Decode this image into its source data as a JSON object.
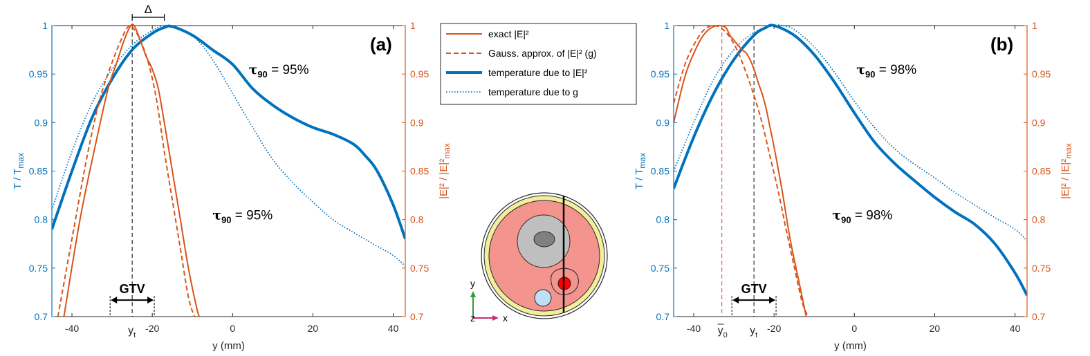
{
  "colors": {
    "temp": "#0072BD",
    "efield": "#D95319",
    "panel_label": "#1F2D8C",
    "axis_text": "#262626",
    "body": "#F4948F",
    "skin": "#F3EE9B",
    "gray_outer": "#BFBFBF",
    "gray_inner": "#808080",
    "tumor": "#FF0000",
    "bladder": "#BDE0F7",
    "y_axis_arrow": "#2E9C3C",
    "x_axis_arrow": "#C62D6E"
  },
  "legend": [
    {
      "text": "exact |E|²",
      "style": "efield-solid"
    },
    {
      "text": "Gauss. approx. of |E|² (g)",
      "style": "efield-dashed"
    },
    {
      "text": "temperature due to |E|²",
      "style": "temp-solid"
    },
    {
      "text": "temperature due to g",
      "style": "temp-dotted"
    }
  ],
  "inset": {
    "y_axis": "y",
    "z_axis": "z",
    "x_axis": "x"
  },
  "chart_data": [
    {
      "type": "line",
      "panel_label": "(a)",
      "xlabel": "y (mm)",
      "ylabel_left": "T / T",
      "ylabel_left_sub": "max",
      "ylabel_right": "|E|² / |E|²",
      "ylabel_right_sub": "max",
      "xlim": [
        -45,
        43
      ],
      "ylim_left": [
        0.7,
        1.0
      ],
      "ylim_right": [
        0.7,
        1.0
      ],
      "x_tick_labels": [
        {
          "x": -40,
          "text": "-40"
        },
        {
          "x": -20,
          "text": "-20"
        },
        {
          "x": 0,
          "text": "0"
        },
        {
          "x": 20,
          "text": "20"
        },
        {
          "x": 40,
          "text": "40"
        }
      ],
      "extra_x_label": {
        "x": -25,
        "text": "y",
        "sub": "t"
      },
      "y_ticks": [
        0.7,
        0.75,
        0.8,
        0.85,
        0.9,
        0.95,
        1
      ],
      "y_tick_labels": [
        "0.7",
        "0.75",
        "0.8",
        "0.85",
        "0.9",
        "0.95",
        "1"
      ],
      "vlines": [
        {
          "x": -25,
          "color": "black"
        }
      ],
      "gtv": {
        "x1": -30.5,
        "x2": -19.5,
        "y": 0.717,
        "label": "GTV"
      },
      "delta": {
        "x1": -25,
        "x2": -17,
        "label": "Δ"
      },
      "tau_annotations": [
        {
          "text": "τ",
          "sub": "90",
          "value": " = 95%",
          "x": 4,
          "y": 0.95
        },
        {
          "text": "τ",
          "sub": "90",
          "value": " = 95%",
          "x": -5,
          "y": 0.8
        }
      ],
      "series": [
        {
          "name": "temperature due to |E|²",
          "axis": "left",
          "style": "temp-solid",
          "x": [
            -45,
            -40,
            -35,
            -30,
            -25,
            -20,
            -17,
            -15,
            -10,
            -5,
            0,
            5,
            10,
            15,
            20,
            25,
            30,
            33,
            36,
            40,
            43
          ],
          "y": [
            0.79,
            0.85,
            0.905,
            0.945,
            0.975,
            0.992,
            0.998,
            0.999,
            0.99,
            0.975,
            0.96,
            0.935,
            0.918,
            0.905,
            0.895,
            0.888,
            0.878,
            0.866,
            0.85,
            0.815,
            0.78
          ]
        },
        {
          "name": "temperature due to g",
          "axis": "left",
          "style": "temp-dotted",
          "x": [
            -45,
            -40,
            -35,
            -30,
            -25,
            -20,
            -17,
            -15,
            -10,
            -5,
            0,
            5,
            10,
            15,
            20,
            25,
            30,
            35,
            40,
            43
          ],
          "y": [
            0.81,
            0.87,
            0.92,
            0.955,
            0.98,
            0.995,
            1.0,
            0.999,
            0.99,
            0.965,
            0.93,
            0.895,
            0.862,
            0.838,
            0.818,
            0.8,
            0.787,
            0.775,
            0.763,
            0.752
          ]
        },
        {
          "name": "exact |E|²",
          "axis": "right",
          "style": "efield-solid",
          "x": [
            -42,
            -38,
            -34,
            -31,
            -29,
            -27,
            -25.5,
            -24.5,
            -23,
            -21.5,
            -20,
            -18.5,
            -17,
            -15,
            -13,
            -11,
            -9,
            -8.3
          ],
          "y": [
            0.7,
            0.8,
            0.88,
            0.935,
            0.96,
            0.985,
            0.999,
            1.0,
            0.985,
            0.968,
            0.955,
            0.935,
            0.9,
            0.85,
            0.8,
            0.75,
            0.71,
            0.7
          ]
        },
        {
          "name": "Gauss. approx. of |E|² (g)",
          "axis": "right",
          "style": "efield-dashed",
          "x": [
            -43.5,
            -40,
            -36,
            -33,
            -30,
            -28,
            -26.5,
            -25.5,
            -24.5,
            -23,
            -21,
            -19,
            -17,
            -15,
            -13,
            -11,
            -9.5
          ],
          "y": [
            0.7,
            0.78,
            0.87,
            0.925,
            0.962,
            0.983,
            0.996,
            1.0,
            0.996,
            0.985,
            0.962,
            0.925,
            0.87,
            0.82,
            0.77,
            0.72,
            0.7
          ]
        }
      ]
    },
    {
      "type": "line",
      "panel_label": "(b)",
      "xlabel": "y (mm)",
      "ylabel_left": "T / T",
      "ylabel_left_sub": "max",
      "ylabel_right": "|E|² / |E|²",
      "ylabel_right_sub": "max",
      "xlim": [
        -45,
        43
      ],
      "ylim_left": [
        0.7,
        1.0
      ],
      "ylim_right": [
        0.7,
        1.0
      ],
      "x_tick_labels": [
        {
          "x": -40,
          "text": "-40"
        },
        {
          "x": -20,
          "text": "-20"
        },
        {
          "x": 0,
          "text": "0"
        },
        {
          "x": 20,
          "text": "20"
        },
        {
          "x": 40,
          "text": "40"
        }
      ],
      "extra_x_labels": [
        {
          "x": -33,
          "text": "y",
          "sub": "0",
          "bar": true
        },
        {
          "x": -25,
          "text": "y",
          "sub": "t",
          "bar": false
        }
      ],
      "y_ticks": [
        0.7,
        0.75,
        0.8,
        0.85,
        0.9,
        0.95,
        1
      ],
      "y_tick_labels": [
        "0.7",
        "0.75",
        "0.8",
        "0.85",
        "0.9",
        "0.95",
        "1"
      ],
      "vlines": [
        {
          "x": -33,
          "color": "efield"
        },
        {
          "x": -25,
          "color": "black"
        }
      ],
      "gtv": {
        "x1": -30.5,
        "x2": -19.5,
        "y": 0.717,
        "label": "GTV"
      },
      "tau_annotations": [
        {
          "text": "τ",
          "sub": "90",
          "value": " = 98%",
          "x": 0.5,
          "y": 0.95
        },
        {
          "text": "τ",
          "sub": "90",
          "value": " = 98%",
          "x": -5.5,
          "y": 0.8
        }
      ],
      "series": [
        {
          "name": "temperature due to |E|²",
          "axis": "left",
          "style": "temp-solid",
          "x": [
            -45,
            -40,
            -35,
            -30,
            -25,
            -22,
            -20,
            -15,
            -10,
            -5,
            0,
            5,
            10,
            15,
            20,
            25,
            30,
            35,
            40,
            43
          ],
          "y": [
            0.832,
            0.885,
            0.93,
            0.965,
            0.99,
            0.998,
            1.0,
            0.99,
            0.97,
            0.942,
            0.91,
            0.88,
            0.858,
            0.84,
            0.823,
            0.808,
            0.795,
            0.775,
            0.745,
            0.722
          ]
        },
        {
          "name": "temperature due to g",
          "axis": "left",
          "style": "temp-dotted",
          "x": [
            -45,
            -40,
            -35,
            -30,
            -25,
            -20,
            -18,
            -15,
            -10,
            -5,
            0,
            5,
            10,
            15,
            20,
            25,
            30,
            35,
            40,
            43
          ],
          "y": [
            0.85,
            0.9,
            0.945,
            0.975,
            0.993,
            1.0,
            1.0,
            0.996,
            0.978,
            0.952,
            0.922,
            0.895,
            0.873,
            0.857,
            0.843,
            0.828,
            0.815,
            0.802,
            0.79,
            0.778
          ]
        },
        {
          "name": "exact |E|²",
          "axis": "right",
          "style": "efield-solid",
          "x": [
            -45,
            -42,
            -39,
            -37,
            -35,
            -33.5,
            -32,
            -31,
            -30,
            -29,
            -28,
            -27,
            -26,
            -25,
            -24,
            -23,
            -22,
            -21,
            -20,
            -18,
            -16,
            -14,
            -12.5,
            -12
          ],
          "y": [
            0.9,
            0.95,
            0.98,
            0.993,
            0.999,
            1.0,
            0.998,
            0.99,
            0.985,
            0.98,
            0.975,
            0.972,
            0.965,
            0.955,
            0.942,
            0.93,
            0.915,
            0.895,
            0.875,
            0.83,
            0.78,
            0.74,
            0.71,
            0.7
          ]
        },
        {
          "name": "Gauss. approx. of |E|² (g)",
          "axis": "right",
          "style": "efield-dashed",
          "x": [
            -45,
            -42,
            -39,
            -37,
            -35,
            -33,
            -31,
            -29,
            -27,
            -25,
            -23,
            -21,
            -19,
            -17,
            -15,
            -13,
            -11.5
          ],
          "y": [
            0.92,
            0.962,
            0.987,
            0.997,
            1.0,
            0.997,
            0.988,
            0.973,
            0.952,
            0.928,
            0.9,
            0.865,
            0.83,
            0.79,
            0.752,
            0.715,
            0.7
          ]
        }
      ]
    }
  ]
}
